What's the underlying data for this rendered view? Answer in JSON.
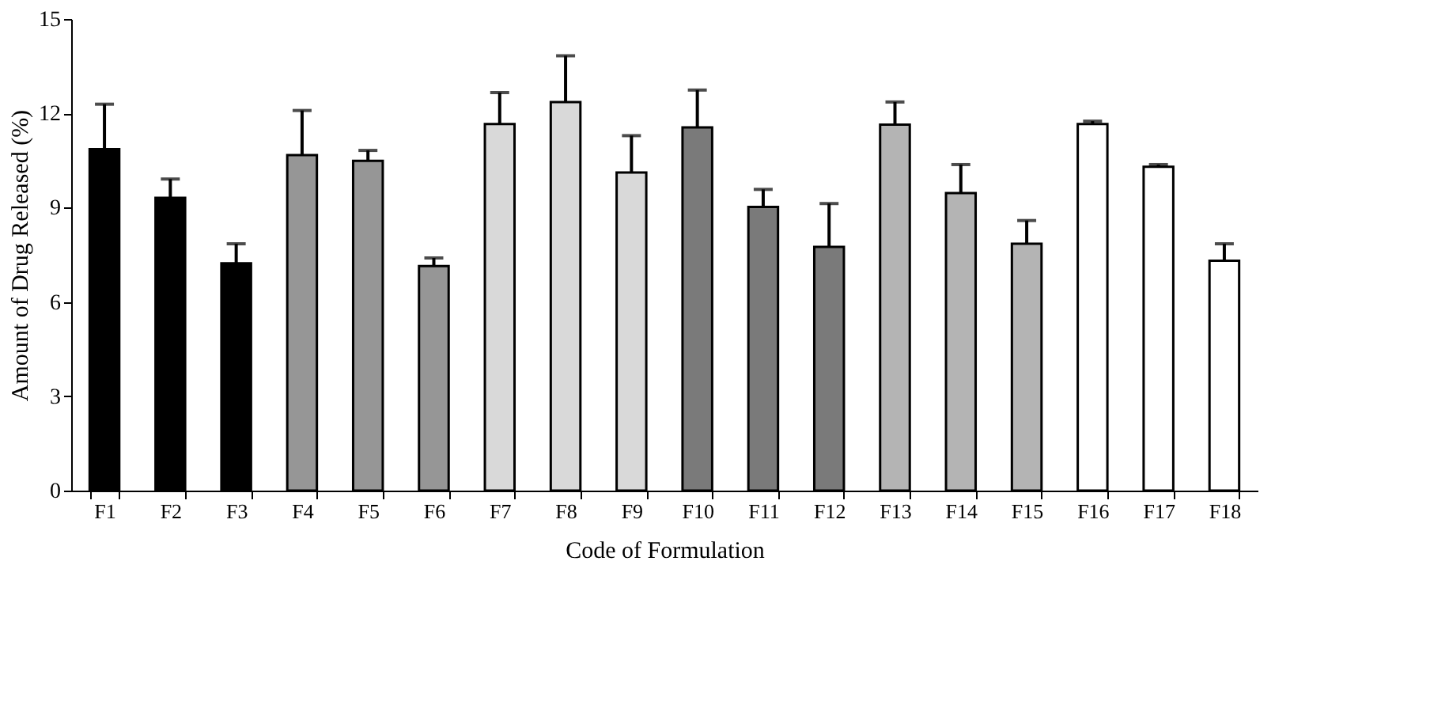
{
  "chart_data": {
    "type": "bar",
    "xlabel": "Code of Formulation",
    "ylabel": "Amount of Drug Released (%)",
    "categories": [
      "F1",
      "F2",
      "F3",
      "F4",
      "F5",
      "F6",
      "F7",
      "F8",
      "F9",
      "F10",
      "F11",
      "F12",
      "F13",
      "F14",
      "F15",
      "F16",
      "F17",
      "F18"
    ],
    "values": [
      10.86,
      9.31,
      7.23,
      10.67,
      10.49,
      7.14,
      11.66,
      12.36,
      10.12,
      11.55,
      9.02,
      7.75,
      11.64,
      9.46,
      7.85,
      11.66,
      10.3,
      7.31
    ],
    "errors": [
      [
        10.86,
        12.29
      ],
      [
        9.31,
        9.91
      ],
      [
        7.23,
        7.85
      ],
      [
        10.67,
        12.09
      ],
      [
        10.49,
        10.82
      ],
      [
        7.14,
        7.4
      ],
      [
        11.66,
        12.66
      ],
      [
        12.36,
        13.83
      ],
      [
        10.12,
        11.29
      ],
      [
        11.55,
        12.74
      ],
      [
        9.02,
        9.58
      ],
      [
        7.75,
        9.13
      ],
      [
        11.64,
        12.36
      ],
      [
        9.46,
        10.37
      ],
      [
        7.85,
        8.59
      ],
      [
        11.66,
        11.75
      ],
      [
        10.3,
        10.37
      ],
      [
        7.31,
        7.85
      ]
    ],
    "colors": [
      "#000000",
      "#000000",
      "#000000",
      "#969696",
      "#969696",
      "#969696",
      "#d9d9d9",
      "#d9d9d9",
      "#d9d9d9",
      "#7a7a7a",
      "#7a7a7a",
      "#7a7a7a",
      "#b4b4b4",
      "#b4b4b4",
      "#b4b4b4",
      "#ffffff",
      "#ffffff",
      "#ffffff"
    ],
    "ylim": [
      0,
      15
    ],
    "yticks": [
      0,
      3,
      6,
      9,
      12,
      15
    ],
    "grid": false
  }
}
